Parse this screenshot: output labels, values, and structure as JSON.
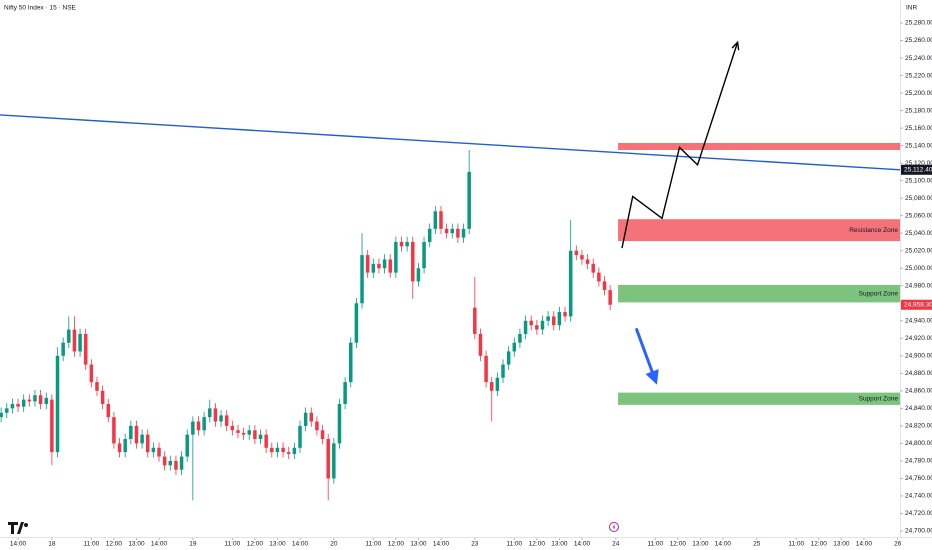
{
  "chart_data": {
    "type": "candlestick",
    "title": "Nifty 50 Index · 15 · NSE",
    "currency": "INR",
    "xlim": [
      -9.2,
      150.4
    ],
    "ylim": [
      24700,
      25280
    ],
    "xticks": [
      {
        "value": -6,
        "label": "14:00"
      },
      {
        "value": 0,
        "label": "18"
      },
      {
        "value": 7,
        "label": "11:00"
      },
      {
        "value": 11,
        "label": "12:00"
      },
      {
        "value": 15,
        "label": "13:00"
      },
      {
        "value": 19,
        "label": "14:00"
      },
      {
        "value": 25,
        "label": "19"
      },
      {
        "value": 32,
        "label": "11:00"
      },
      {
        "value": 36,
        "label": "12:00"
      },
      {
        "value": 40,
        "label": "13:00"
      },
      {
        "value": 44,
        "label": "14:00"
      },
      {
        "value": 50,
        "label": "20"
      },
      {
        "value": 57,
        "label": "11:00"
      },
      {
        "value": 61,
        "label": "12:00"
      },
      {
        "value": 65,
        "label": "13:00"
      },
      {
        "value": 69,
        "label": "14:00"
      },
      {
        "value": 75,
        "label": "23"
      },
      {
        "value": 82,
        "label": "11:00"
      },
      {
        "value": 86,
        "label": "12:00"
      },
      {
        "value": 90,
        "label": "13:00"
      },
      {
        "value": 94,
        "label": "14:00"
      },
      {
        "value": 100,
        "label": "24"
      },
      {
        "value": 107,
        "label": "11:00"
      },
      {
        "value": 111,
        "label": "12:00"
      },
      {
        "value": 115,
        "label": "13:00"
      },
      {
        "value": 119,
        "label": "14:00"
      },
      {
        "value": 125,
        "label": "25"
      },
      {
        "value": 132,
        "label": "11:00"
      },
      {
        "value": 136,
        "label": "12:00"
      },
      {
        "value": 140,
        "label": "13:00"
      },
      {
        "value": 144,
        "label": "14:00"
      },
      {
        "value": 150,
        "label": "26"
      }
    ],
    "yticks": [
      {
        "value": 24700,
        "label": "24,700.00"
      },
      {
        "value": 24720,
        "label": "24,720.00"
      },
      {
        "value": 24740,
        "label": "24,740.00"
      },
      {
        "value": 24760,
        "label": "24,760.00"
      },
      {
        "value": 24780,
        "label": "24,780.00"
      },
      {
        "value": 24800,
        "label": "24,800.00"
      },
      {
        "value": 24820,
        "label": "24,820.00"
      },
      {
        "value": 24840,
        "label": "24,840.00"
      },
      {
        "value": 24860,
        "label": "24,860.00"
      },
      {
        "value": 24880,
        "label": "24,880.00"
      },
      {
        "value": 24900,
        "label": "24,900.00"
      },
      {
        "value": 24920,
        "label": "24,920.00"
      },
      {
        "value": 24940,
        "label": "24,940.00"
      },
      {
        "value": 24960,
        "label": "24,960.00"
      },
      {
        "value": 24980,
        "label": "24,980.00"
      },
      {
        "value": 25000,
        "label": "25,000.00"
      },
      {
        "value": 25020,
        "label": "25,020.00"
      },
      {
        "value": 25040,
        "label": "25,040.00"
      },
      {
        "value": 25060,
        "label": "25,060.00"
      },
      {
        "value": 25080,
        "label": "25,080.00"
      },
      {
        "value": 25100,
        "label": "25,100.00"
      },
      {
        "value": 25120,
        "label": "25,120.00"
      },
      {
        "value": 25140,
        "label": "25,140.00"
      },
      {
        "value": 25160,
        "label": "25,160.00"
      },
      {
        "value": 25180,
        "label": "25,180.00"
      },
      {
        "value": 25200,
        "label": "25,200.00"
      },
      {
        "value": 25220,
        "label": "25,220.00"
      },
      {
        "value": 25240,
        "label": "25,240.00"
      },
      {
        "value": 25260,
        "label": "25,260.00"
      },
      {
        "value": 25280,
        "label": "25,280.00"
      }
    ],
    "up_color": "#089981",
    "down_color": "#f23645",
    "x": [
      -9,
      -8,
      -7,
      -6,
      -5,
      -4,
      -3,
      -2,
      -1,
      0,
      1,
      2,
      3,
      4,
      5,
      6,
      7,
      8,
      9,
      10,
      11,
      12,
      13,
      14,
      15,
      16,
      17,
      18,
      19,
      20,
      21,
      22,
      23,
      24,
      25,
      26,
      27,
      28,
      29,
      30,
      31,
      32,
      33,
      34,
      35,
      36,
      37,
      38,
      39,
      40,
      41,
      42,
      43,
      44,
      45,
      46,
      47,
      48,
      49,
      50,
      51,
      52,
      53,
      54,
      55,
      56,
      57,
      58,
      59,
      60,
      61,
      62,
      63,
      64,
      65,
      66,
      67,
      68,
      69,
      70,
      71,
      72,
      73,
      74,
      75,
      76,
      77,
      78,
      79,
      80,
      81,
      82,
      83,
      84,
      85,
      86,
      87,
      88,
      89,
      90,
      91,
      92,
      93,
      94,
      95,
      96,
      97,
      98,
      99
    ],
    "open": [
      24830,
      24835,
      24840,
      24845,
      24842,
      24850,
      24848,
      24855,
      24845,
      24850,
      24790,
      24900,
      24915,
      24930,
      24905,
      24925,
      24890,
      24870,
      24860,
      24845,
      24830,
      24800,
      24790,
      24805,
      24820,
      24800,
      24810,
      24790,
      24795,
      24785,
      24775,
      24780,
      24770,
      24785,
      24810,
      24825,
      24815,
      24830,
      24840,
      24825,
      24832,
      24820,
      24815,
      24812,
      24810,
      24815,
      24805,
      24810,
      24795,
      24790,
      24795,
      24790,
      24788,
      24795,
      24820,
      24835,
      24825,
      24815,
      24805,
      24760,
      24800,
      24845,
      24870,
      24915,
      24960,
      25015,
      24995,
      25005,
      25000,
      25010,
      24995,
      25030,
      25025,
      25030,
      24985,
      25000,
      25030,
      25045,
      25065,
      25045,
      25040,
      25045,
      25035,
      25045,
      24955,
      24925,
      24900,
      24870,
      24860,
      24875,
      24890,
      24905,
      24915,
      24925,
      24940,
      24935,
      24930,
      24940,
      24945,
      24935,
      24950,
      24945,
      25020,
      25015,
      25010,
      25005,
      24995,
      24985,
      24975
    ],
    "high": [
      24841,
      24846,
      24851,
      24851,
      24856,
      24856,
      24861,
      24861,
      24858,
      24856,
      24910,
      24921,
      24945,
      24945,
      24931,
      24931,
      24896,
      24876,
      24866,
      24851,
      24836,
      24806,
      24811,
      24826,
      24826,
      24816,
      24816,
      24801,
      24801,
      24791,
      24786,
      24786,
      24791,
      24816,
      24831,
      24831,
      24836,
      24850,
      24846,
      24838,
      24838,
      24826,
      24821,
      24818,
      24821,
      24821,
      24816,
      24816,
      24801,
      24801,
      24801,
      24796,
      24801,
      24826,
      24841,
      24841,
      24831,
      24821,
      24811,
      24806,
      24851,
      24876,
      24921,
      24966,
      25040,
      25021,
      25011,
      25011,
      25016,
      25016,
      25036,
      25036,
      25036,
      25036,
      25006,
      25036,
      25051,
      25071,
      25071,
      25051,
      25051,
      25051,
      25051,
      25135,
      24990,
      24931,
      24906,
      24876,
      24881,
      24896,
      24911,
      24921,
      24931,
      24946,
      24946,
      24941,
      24946,
      24951,
      24951,
      24956,
      24956,
      25055,
      25026,
      25021,
      25016,
      25011,
      25001,
      24991,
      24981
    ],
    "low": [
      24824,
      24829,
      24834,
      24836,
      24836,
      24842,
      24842,
      24839,
      24839,
      24775,
      24784,
      24894,
      24909,
      24899,
      24899,
      24884,
      24864,
      24854,
      24839,
      24824,
      24794,
      24784,
      24784,
      24799,
      24794,
      24794,
      24784,
      24784,
      24779,
      24769,
      24769,
      24764,
      24764,
      24779,
      24735,
      24809,
      24809,
      24824,
      24819,
      24819,
      24814,
      24809,
      24806,
      24804,
      24804,
      24799,
      24799,
      24789,
      24784,
      24784,
      24784,
      24782,
      24782,
      24789,
      24814,
      24819,
      24809,
      24799,
      24735,
      24754,
      24794,
      24839,
      24864,
      24909,
      24954,
      24989,
      24989,
      24994,
      24994,
      24989,
      24989,
      25019,
      25019,
      24965,
      24979,
      24994,
      25024,
      25039,
      25039,
      25034,
      25034,
      25029,
      25029,
      25039,
      24919,
      24894,
      24864,
      24825,
      24854,
      24869,
      24884,
      24899,
      24909,
      24919,
      24929,
      24924,
      24924,
      24934,
      24929,
      24929,
      24939,
      24939,
      25009,
      25004,
      24999,
      24989,
      24979,
      24969,
      24952
    ],
    "close": [
      24835,
      24840,
      24845,
      24842,
      24850,
      24848,
      24855,
      24845,
      24852,
      24790,
      24900,
      24915,
      24930,
      24905,
      24925,
      24890,
      24870,
      24860,
      24845,
      24830,
      24800,
      24790,
      24805,
      24820,
      24800,
      24810,
      24790,
      24795,
      24785,
      24775,
      24780,
      24770,
      24785,
      24810,
      24825,
      24815,
      24830,
      24840,
      24825,
      24832,
      24820,
      24815,
      24812,
      24810,
      24815,
      24805,
      24810,
      24795,
      24790,
      24795,
      24790,
      24788,
      24795,
      24820,
      24835,
      24825,
      24815,
      24805,
      24760,
      24800,
      24845,
      24870,
      24915,
      24960,
      25015,
      24995,
      25005,
      25000,
      25010,
      24995,
      25030,
      25025,
      25030,
      24985,
      25000,
      25030,
      25045,
      25065,
      25045,
      25040,
      25045,
      25035,
      25045,
      25110,
      24925,
      24900,
      24870,
      24860,
      24875,
      24890,
      24905,
      24915,
      24925,
      24940,
      24935,
      24930,
      24940,
      24945,
      24935,
      24950,
      24945,
      25020,
      25015,
      25010,
      25005,
      24995,
      24985,
      24975,
      24958.3
    ],
    "last_price": {
      "value": 24958.3,
      "label": "24,958.30"
    },
    "trendline": {
      "color": "#1f5fd1",
      "x": [
        -9.2,
        150.4
      ],
      "y": [
        25175,
        25112.4
      ],
      "price_label": {
        "value": 25112.4,
        "label": "25,112.40"
      }
    },
    "zones": [
      {
        "color": "#f4737b",
        "x": [
          100.4,
          150.4
        ],
        "low": 25135,
        "high": 25143
      },
      {
        "color": "#f4737b",
        "x": [
          100.4,
          150.4
        ],
        "low": 25031,
        "high": 25056,
        "label": "Resistance Zone"
      },
      {
        "color": "#7cc47e",
        "x": [
          100.4,
          150.4
        ],
        "low": 24961,
        "high": 24981,
        "label": "Support Zone"
      },
      {
        "color": "#7cc47e",
        "x": [
          100.4,
          150.4
        ],
        "low": 24844,
        "high": 24858,
        "label": "Support Zone"
      }
    ],
    "projection": {
      "color": "#000000",
      "x": [
        101.1,
        103.0,
        108.2,
        111.3,
        114.5,
        121.6
      ],
      "y": [
        25023,
        25082,
        25057,
        25138,
        25118,
        25258
      ]
    },
    "down_arrow": {
      "color": "#2962ff",
      "x": [
        103.7,
        107.3
      ],
      "y": [
        24930,
        24867
      ]
    }
  }
}
